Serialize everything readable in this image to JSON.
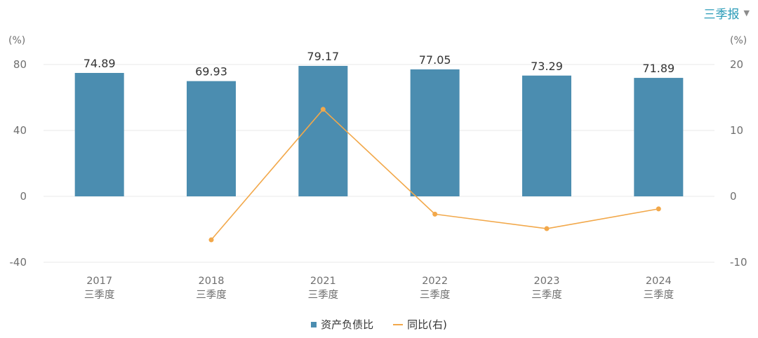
{
  "period_selector": {
    "label": "三季报",
    "arrow": "▼"
  },
  "colors": {
    "bar": "#4b8db0",
    "line": "#f2a84a",
    "grid": "#e8e8e8"
  },
  "chart_data": {
    "type": "bar",
    "categories": [
      [
        "2017",
        "三季度"
      ],
      [
        "2018",
        "三季度"
      ],
      [
        "2021",
        "三季度"
      ],
      [
        "2022",
        "三季度"
      ],
      [
        "2023",
        "三季度"
      ],
      [
        "2024",
        "三季度"
      ]
    ],
    "series": [
      {
        "name": "资产负债比",
        "type": "bar",
        "axis": "left",
        "values": [
          74.89,
          69.93,
          79.17,
          77.05,
          73.29,
          71.89
        ],
        "labels": [
          "74.89",
          "69.93",
          "79.17",
          "77.05",
          "73.29",
          "71.89"
        ]
      },
      {
        "name": "同比(右)",
        "type": "line",
        "axis": "right",
        "values": [
          null,
          -6.6,
          13.2,
          -2.7,
          -4.9,
          -1.9
        ]
      }
    ],
    "y_left": {
      "unit": "(%)",
      "ticks": [
        80,
        40,
        0,
        -40
      ],
      "range": [
        -40,
        80
      ]
    },
    "y_right": {
      "unit": "(%)",
      "ticks": [
        20,
        10,
        0,
        -10
      ],
      "range": [
        -10,
        20
      ]
    },
    "grid": true,
    "legend_position": "bottom-center"
  }
}
